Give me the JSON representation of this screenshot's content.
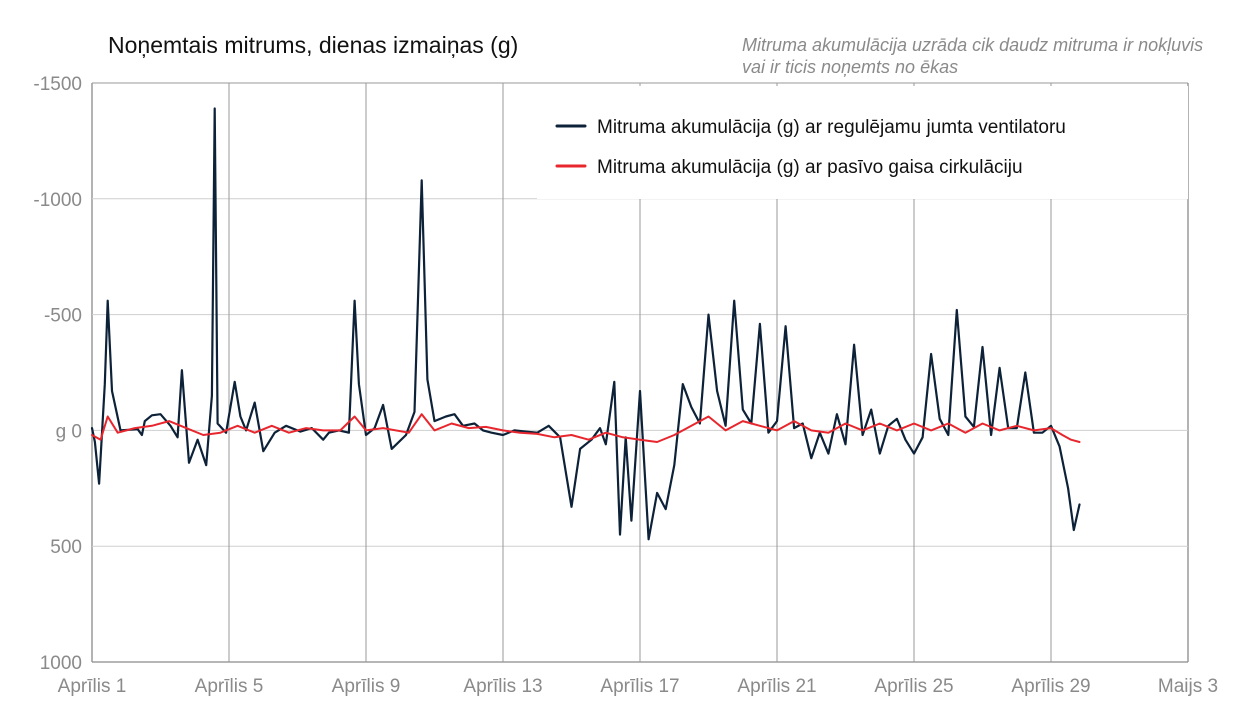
{
  "chart_data": {
    "type": "line",
    "title": "Noņemtais mitrums, dienas izmaiņas (g)",
    "subtitle": "Mitruma akumulācija uzrāda cik daudz mitruma ir nokļuvis vai ir ticis noņemts no ēkas",
    "xlabel": "",
    "ylabel": "",
    "x_axis": {
      "type": "date",
      "range": [
        "2024-04-01",
        "2024-05-03"
      ],
      "ticks": [
        {
          "date": "2024-04-01",
          "label": "Aprīlis 1"
        },
        {
          "date": "2024-04-05",
          "label": "Aprīlis 5"
        },
        {
          "date": "2024-04-09",
          "label": "Aprīlis 9"
        },
        {
          "date": "2024-04-13",
          "label": "Aprīlis 13"
        },
        {
          "date": "2024-04-17",
          "label": "Aprīlis 17"
        },
        {
          "date": "2024-04-21",
          "label": "Aprīlis 21"
        },
        {
          "date": "2024-04-25",
          "label": "Aprīlis 25"
        },
        {
          "date": "2024-04-29",
          "label": "Aprīlis 29"
        },
        {
          "date": "2024-05-03",
          "label": "Maijs 3"
        }
      ]
    },
    "y_axis": {
      "ylim": [
        -1500,
        1000
      ],
      "inverted": true,
      "ticks": [
        {
          "value": -1500,
          "label": "-1500"
        },
        {
          "value": -1000,
          "label": "-1000"
        },
        {
          "value": -500,
          "label": "-500"
        },
        {
          "value": 0,
          "label": "g   0"
        },
        {
          "value": 500,
          "label": "500"
        },
        {
          "value": 1000,
          "label": "1000"
        }
      ]
    },
    "grid": true,
    "legend_position": "top-right",
    "series": [
      {
        "name": "Mitruma akumulācija (g) ar regulējamu jumta ventilatoru",
        "color": "#0d2238",
        "points": [
          [
            "2024-04-01T00:00",
            -10
          ],
          [
            "2024-04-01T02:00",
            50
          ],
          [
            "2024-04-01T05:00",
            230
          ],
          [
            "2024-04-01T09:00",
            -200
          ],
          [
            "2024-04-01T11:00",
            -560
          ],
          [
            "2024-04-01T14:00",
            -170
          ],
          [
            "2024-04-01T20:00",
            0
          ],
          [
            "2024-04-02T08:00",
            -5
          ],
          [
            "2024-04-02T11:00",
            20
          ],
          [
            "2024-04-02T13:00",
            -40
          ],
          [
            "2024-04-02T18:00",
            -65
          ],
          [
            "2024-04-03T00:00",
            -70
          ],
          [
            "2024-04-03T07:00",
            -20
          ],
          [
            "2024-04-03T12:00",
            30
          ],
          [
            "2024-04-03T15:00",
            -260
          ],
          [
            "2024-04-03T20:00",
            140
          ],
          [
            "2024-04-04T02:00",
            40
          ],
          [
            "2024-04-04T08:00",
            150
          ],
          [
            "2024-04-04T12:00",
            -150
          ],
          [
            "2024-04-04T14:00",
            -1390
          ],
          [
            "2024-04-04T16:00",
            -30
          ],
          [
            "2024-04-04T22:00",
            10
          ],
          [
            "2024-04-05T04:00",
            -210
          ],
          [
            "2024-04-05T08:00",
            -60
          ],
          [
            "2024-04-05T12:00",
            0
          ],
          [
            "2024-04-05T18:00",
            -120
          ],
          [
            "2024-04-06T00:00",
            90
          ],
          [
            "2024-04-06T08:00",
            10
          ],
          [
            "2024-04-06T16:00",
            -20
          ],
          [
            "2024-04-07T02:00",
            5
          ],
          [
            "2024-04-07T10:00",
            -10
          ],
          [
            "2024-04-07T18:00",
            40
          ],
          [
            "2024-04-07T22:00",
            10
          ],
          [
            "2024-04-08T05:00",
            0
          ],
          [
            "2024-04-08T12:00",
            10
          ],
          [
            "2024-04-08T16:00",
            -560
          ],
          [
            "2024-04-08T19:00",
            -200
          ],
          [
            "2024-04-09T00:00",
            20
          ],
          [
            "2024-04-09T06:00",
            -10
          ],
          [
            "2024-04-09T12:00",
            -110
          ],
          [
            "2024-04-09T18:00",
            80
          ],
          [
            "2024-04-10T04:00",
            20
          ],
          [
            "2024-04-10T10:00",
            -80
          ],
          [
            "2024-04-10T15:00",
            -1080
          ],
          [
            "2024-04-10T19:00",
            -220
          ],
          [
            "2024-04-11T00:00",
            -40
          ],
          [
            "2024-04-11T08:00",
            -60
          ],
          [
            "2024-04-11T14:00",
            -70
          ],
          [
            "2024-04-11T20:00",
            -20
          ],
          [
            "2024-04-12T04:00",
            -30
          ],
          [
            "2024-04-12T10:00",
            0
          ],
          [
            "2024-04-12T16:00",
            10
          ],
          [
            "2024-04-13T00:00",
            20
          ],
          [
            "2024-04-13T08:00",
            0
          ],
          [
            "2024-04-13T16:00",
            5
          ],
          [
            "2024-04-14T00:00",
            10
          ],
          [
            "2024-04-14T08:00",
            -20
          ],
          [
            "2024-04-14T16:00",
            30
          ],
          [
            "2024-04-15T00:00",
            330
          ],
          [
            "2024-04-15T06:00",
            80
          ],
          [
            "2024-04-15T14:00",
            40
          ],
          [
            "2024-04-15T20:00",
            -10
          ],
          [
            "2024-04-16T00:00",
            60
          ],
          [
            "2024-04-16T06:00",
            -210
          ],
          [
            "2024-04-16T10:00",
            450
          ],
          [
            "2024-04-16T14:00",
            30
          ],
          [
            "2024-04-16T18:00",
            390
          ],
          [
            "2024-04-17T00:00",
            -170
          ],
          [
            "2024-04-17T06:00",
            470
          ],
          [
            "2024-04-17T12:00",
            270
          ],
          [
            "2024-04-17T18:00",
            340
          ],
          [
            "2024-04-18T00:00",
            150
          ],
          [
            "2024-04-18T06:00",
            -200
          ],
          [
            "2024-04-18T12:00",
            -100
          ],
          [
            "2024-04-18T18:00",
            -30
          ],
          [
            "2024-04-19T00:00",
            -500
          ],
          [
            "2024-04-19T06:00",
            -170
          ],
          [
            "2024-04-19T12:00",
            -20
          ],
          [
            "2024-04-19T18:00",
            -560
          ],
          [
            "2024-04-20T00:00",
            -90
          ],
          [
            "2024-04-20T06:00",
            -30
          ],
          [
            "2024-04-20T12:00",
            -460
          ],
          [
            "2024-04-20T18:00",
            10
          ],
          [
            "2024-04-21T00:00",
            -40
          ],
          [
            "2024-04-21T06:00",
            -450
          ],
          [
            "2024-04-21T12:00",
            -10
          ],
          [
            "2024-04-21T18:00",
            -30
          ],
          [
            "2024-04-22T00:00",
            120
          ],
          [
            "2024-04-22T06:00",
            10
          ],
          [
            "2024-04-22T12:00",
            100
          ],
          [
            "2024-04-22T18:00",
            -70
          ],
          [
            "2024-04-23T00:00",
            60
          ],
          [
            "2024-04-23T06:00",
            -370
          ],
          [
            "2024-04-23T12:00",
            20
          ],
          [
            "2024-04-23T18:00",
            -90
          ],
          [
            "2024-04-24T00:00",
            100
          ],
          [
            "2024-04-24T06:00",
            -20
          ],
          [
            "2024-04-24T12:00",
            -50
          ],
          [
            "2024-04-24T18:00",
            40
          ],
          [
            "2024-04-25T00:00",
            100
          ],
          [
            "2024-04-25T06:00",
            30
          ],
          [
            "2024-04-25T12:00",
            -330
          ],
          [
            "2024-04-25T18:00",
            -50
          ],
          [
            "2024-04-26T00:00",
            20
          ],
          [
            "2024-04-26T06:00",
            -520
          ],
          [
            "2024-04-26T12:00",
            -60
          ],
          [
            "2024-04-26T18:00",
            -15
          ],
          [
            "2024-04-27T00:00",
            -360
          ],
          [
            "2024-04-27T06:00",
            20
          ],
          [
            "2024-04-27T12:00",
            -270
          ],
          [
            "2024-04-27T18:00",
            -10
          ],
          [
            "2024-04-28T00:00",
            -10
          ],
          [
            "2024-04-28T06:00",
            -250
          ],
          [
            "2024-04-28T12:00",
            10
          ],
          [
            "2024-04-28T18:00",
            10
          ],
          [
            "2024-04-29T00:00",
            -20
          ],
          [
            "2024-04-29T06:00",
            70
          ],
          [
            "2024-04-29T12:00",
            250
          ],
          [
            "2024-04-29T16:00",
            430
          ],
          [
            "2024-04-29T20:00",
            320
          ]
        ]
      },
      {
        "name": "Mitruma akumulācija (g) ar pasīvo gaisa cirkulāciju",
        "color": "#e8262d",
        "points": [
          [
            "2024-04-01T00:00",
            20
          ],
          [
            "2024-04-01T06:00",
            40
          ],
          [
            "2024-04-01T11:00",
            -60
          ],
          [
            "2024-04-01T18:00",
            10
          ],
          [
            "2024-04-02T06:00",
            -10
          ],
          [
            "2024-04-02T18:00",
            -20
          ],
          [
            "2024-04-03T06:00",
            -40
          ],
          [
            "2024-04-03T18:00",
            -10
          ],
          [
            "2024-04-04T06:00",
            20
          ],
          [
            "2024-04-04T18:00",
            10
          ],
          [
            "2024-04-05T06:00",
            -20
          ],
          [
            "2024-04-05T18:00",
            10
          ],
          [
            "2024-04-06T06:00",
            -20
          ],
          [
            "2024-04-06T18:00",
            10
          ],
          [
            "2024-04-07T06:00",
            -10
          ],
          [
            "2024-04-07T18:00",
            0
          ],
          [
            "2024-04-08T06:00",
            0
          ],
          [
            "2024-04-08T16:00",
            -60
          ],
          [
            "2024-04-09T00:00",
            0
          ],
          [
            "2024-04-09T12:00",
            -10
          ],
          [
            "2024-04-10T06:00",
            10
          ],
          [
            "2024-04-10T15:00",
            -70
          ],
          [
            "2024-04-11T00:00",
            0
          ],
          [
            "2024-04-11T12:00",
            -30
          ],
          [
            "2024-04-12T00:00",
            -10
          ],
          [
            "2024-04-12T12:00",
            -15
          ],
          [
            "2024-04-13T00:00",
            0
          ],
          [
            "2024-04-13T12:00",
            10
          ],
          [
            "2024-04-14T00:00",
            15
          ],
          [
            "2024-04-14T12:00",
            30
          ],
          [
            "2024-04-15T00:00",
            20
          ],
          [
            "2024-04-15T12:00",
            40
          ],
          [
            "2024-04-16T00:00",
            10
          ],
          [
            "2024-04-16T12:00",
            30
          ],
          [
            "2024-04-17T00:00",
            40
          ],
          [
            "2024-04-17T12:00",
            50
          ],
          [
            "2024-04-18T00:00",
            20
          ],
          [
            "2024-04-18T12:00",
            -20
          ],
          [
            "2024-04-19T00:00",
            -60
          ],
          [
            "2024-04-19T12:00",
            0
          ],
          [
            "2024-04-20T00:00",
            -40
          ],
          [
            "2024-04-20T12:00",
            -20
          ],
          [
            "2024-04-21T00:00",
            0
          ],
          [
            "2024-04-21T12:00",
            -40
          ],
          [
            "2024-04-22T00:00",
            0
          ],
          [
            "2024-04-22T12:00",
            10
          ],
          [
            "2024-04-23T00:00",
            -30
          ],
          [
            "2024-04-23T12:00",
            0
          ],
          [
            "2024-04-24T00:00",
            -30
          ],
          [
            "2024-04-24T12:00",
            0
          ],
          [
            "2024-04-25T00:00",
            -30
          ],
          [
            "2024-04-25T12:00",
            0
          ],
          [
            "2024-04-26T00:00",
            -30
          ],
          [
            "2024-04-26T12:00",
            10
          ],
          [
            "2024-04-27T00:00",
            -30
          ],
          [
            "2024-04-27T12:00",
            0
          ],
          [
            "2024-04-28T00:00",
            -20
          ],
          [
            "2024-04-28T12:00",
            0
          ],
          [
            "2024-04-29T00:00",
            -10
          ],
          [
            "2024-04-29T08:00",
            20
          ],
          [
            "2024-04-29T14:00",
            40
          ],
          [
            "2024-04-29T20:00",
            50
          ]
        ]
      }
    ]
  }
}
